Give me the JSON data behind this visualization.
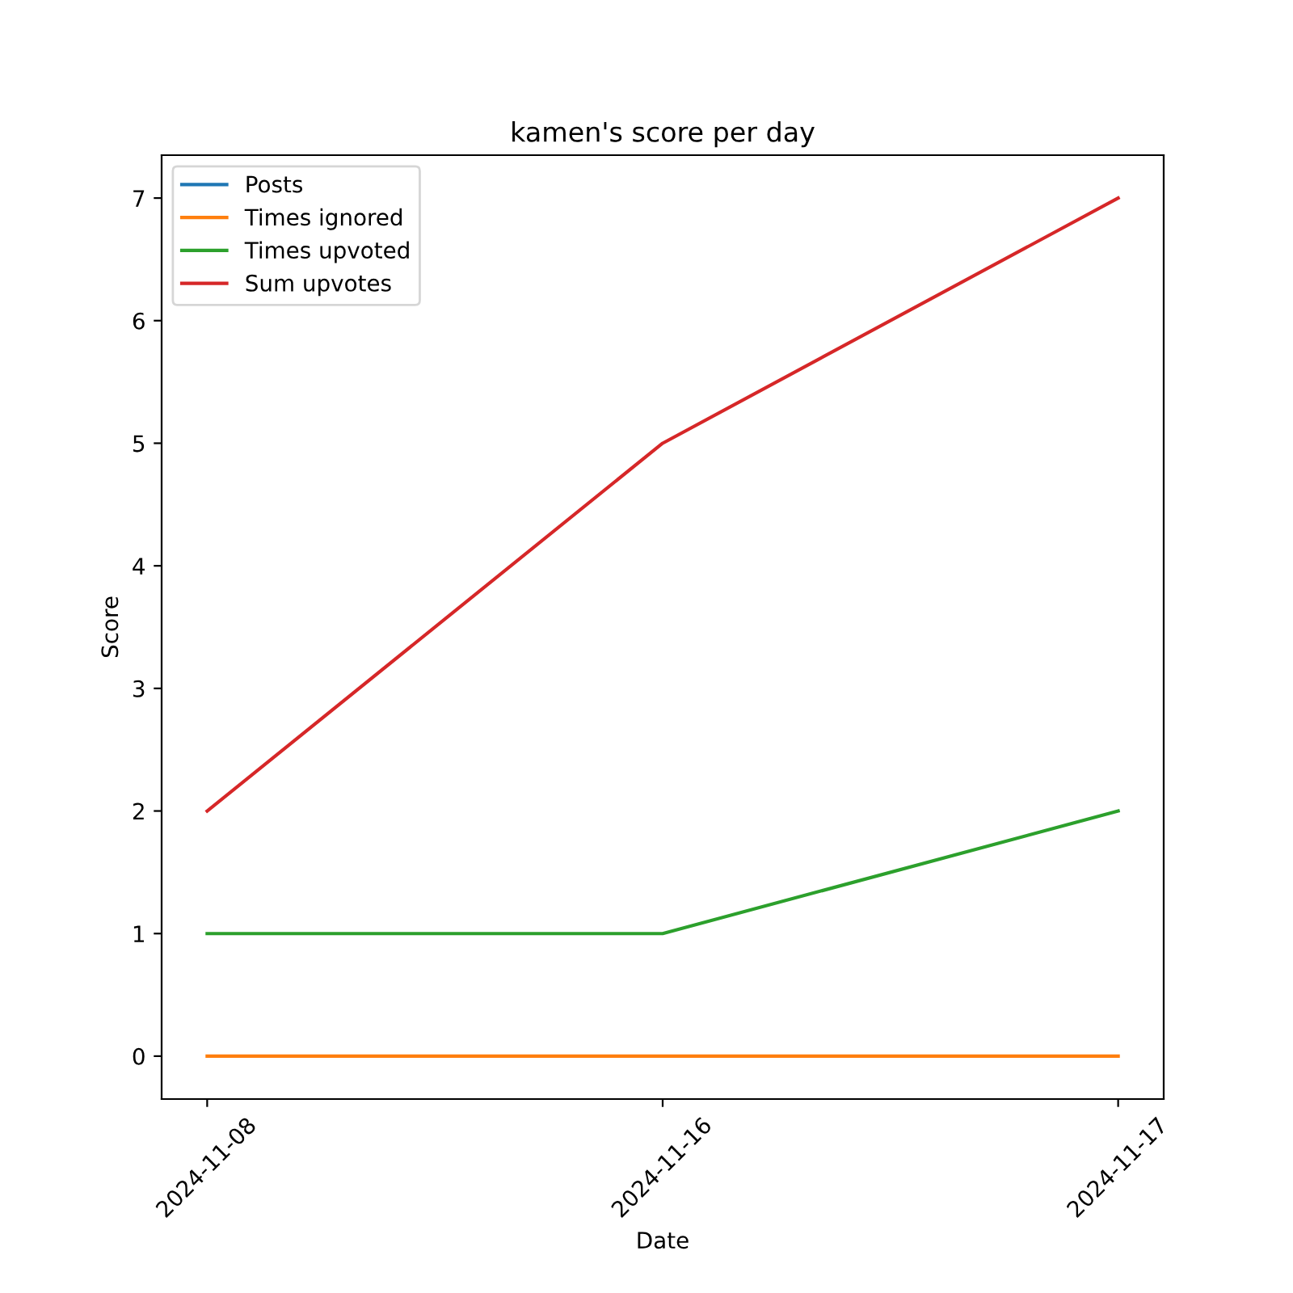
{
  "chart_data": {
    "type": "line",
    "title": "kamen's score per day",
    "xlabel": "Date",
    "ylabel": "Score",
    "categories": [
      "2024-11-08",
      "2024-11-16",
      "2024-11-17"
    ],
    "series": [
      {
        "name": "Posts",
        "color": "#1f77b4",
        "values": [
          null,
          null,
          null
        ]
      },
      {
        "name": "Times ignored",
        "color": "#ff7f0e",
        "values": [
          0,
          0,
          0
        ]
      },
      {
        "name": "Times upvoted",
        "color": "#2ca02c",
        "values": [
          1,
          1,
          2
        ]
      },
      {
        "name": "Sum upvotes",
        "color": "#d62728",
        "values": [
          2,
          5,
          7
        ]
      }
    ],
    "ylim": [
      -0.35,
      7.35
    ],
    "yticks": [
      0,
      1,
      2,
      3,
      4,
      5,
      6,
      7
    ],
    "legend": "top left",
    "grid": false,
    "marker": "none",
    "line_style": "solid"
  }
}
